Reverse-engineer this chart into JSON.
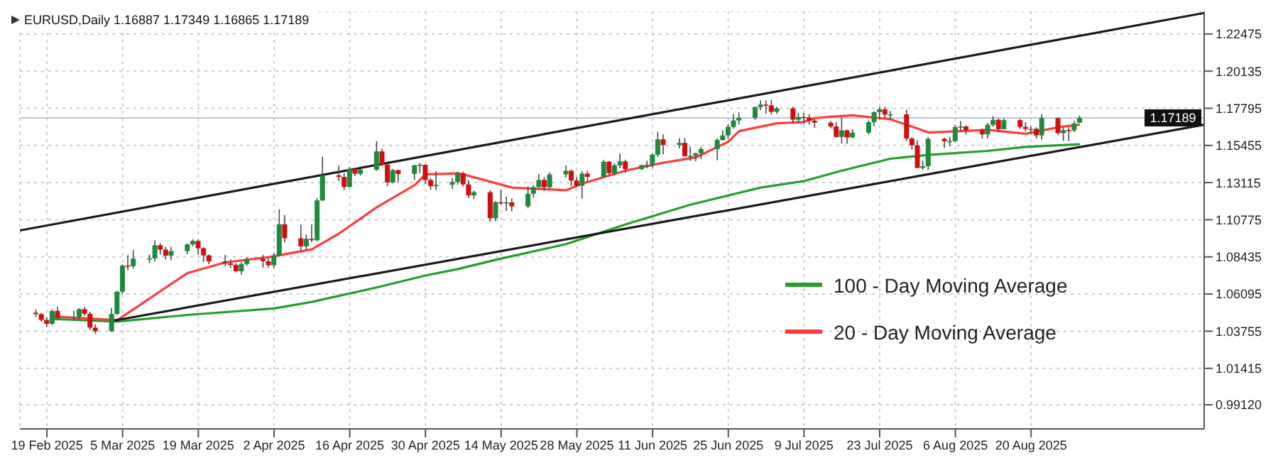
{
  "chart_data": {
    "type": "candlestick",
    "title": "EURUSD,Daily  1.16887 1.17349 1.16865 1.17189",
    "x": [
      "2025-02-17",
      "2025-02-18",
      "2025-02-19",
      "2025-02-20",
      "2025-02-21",
      "2025-02-24",
      "2025-02-25",
      "2025-02-26",
      "2025-02-27",
      "2025-02-28",
      "2025-03-03",
      "2025-03-04",
      "2025-03-05",
      "2025-03-06",
      "2025-03-07",
      "2025-03-10",
      "2025-03-11",
      "2025-03-12",
      "2025-03-13",
      "2025-03-14",
      "2025-03-17",
      "2025-03-18",
      "2025-03-19",
      "2025-03-20",
      "2025-03-21",
      "2025-03-24",
      "2025-03-25",
      "2025-03-26",
      "2025-03-27",
      "2025-03-28",
      "2025-03-31",
      "2025-04-01",
      "2025-04-02",
      "2025-04-03",
      "2025-04-04",
      "2025-04-07",
      "2025-04-08",
      "2025-04-09",
      "2025-04-10",
      "2025-04-11",
      "2025-04-14",
      "2025-04-15",
      "2025-04-16",
      "2025-04-17",
      "2025-04-18",
      "2025-04-21",
      "2025-04-22",
      "2025-04-23",
      "2025-04-24",
      "2025-04-25",
      "2025-04-28",
      "2025-04-29",
      "2025-04-30",
      "2025-05-01",
      "2025-05-02",
      "2025-05-05",
      "2025-05-06",
      "2025-05-07",
      "2025-05-08",
      "2025-05-09",
      "2025-05-12",
      "2025-05-13",
      "2025-05-14",
      "2025-05-15",
      "2025-05-16",
      "2025-05-19",
      "2025-05-20",
      "2025-05-21",
      "2025-05-22",
      "2025-05-23",
      "2025-05-26",
      "2025-05-27",
      "2025-05-28",
      "2025-05-29",
      "2025-05-30",
      "2025-06-02",
      "2025-06-03",
      "2025-06-04",
      "2025-06-05",
      "2025-06-06",
      "2025-06-09",
      "2025-06-10",
      "2025-06-11",
      "2025-06-12",
      "2025-06-13",
      "2025-06-16",
      "2025-06-17",
      "2025-06-18",
      "2025-06-19",
      "2025-06-20",
      "2025-06-23",
      "2025-06-24",
      "2025-06-25",
      "2025-06-26",
      "2025-06-27",
      "2025-06-30",
      "2025-07-01",
      "2025-07-02",
      "2025-07-03",
      "2025-07-04",
      "2025-07-07",
      "2025-07-08",
      "2025-07-09",
      "2025-07-10",
      "2025-07-11",
      "2025-07-14",
      "2025-07-15",
      "2025-07-16",
      "2025-07-17",
      "2025-07-18",
      "2025-07-21",
      "2025-07-22",
      "2025-07-23",
      "2025-07-24",
      "2025-07-25",
      "2025-07-28",
      "2025-07-29",
      "2025-07-30",
      "2025-07-31",
      "2025-08-01",
      "2025-08-04",
      "2025-08-05",
      "2025-08-06",
      "2025-08-07",
      "2025-08-08",
      "2025-08-11",
      "2025-08-12",
      "2025-08-13",
      "2025-08-14",
      "2025-08-15",
      "2025-08-18",
      "2025-08-19",
      "2025-08-20",
      "2025-08-21",
      "2025-08-22",
      "2025-08-25",
      "2025-08-26",
      "2025-08-27",
      "2025-08-28",
      "2025-08-29"
    ],
    "ohlc": [
      [
        1.0492,
        1.0513,
        1.0465,
        1.0483
      ],
      [
        1.0483,
        1.049,
        1.0435,
        1.0446
      ],
      [
        1.0446,
        1.0462,
        1.0401,
        1.0422
      ],
      [
        1.0422,
        1.0512,
        1.0415,
        1.0503
      ],
      [
        1.0503,
        1.0528,
        1.0448,
        1.0459
      ],
      [
        1.0459,
        1.0505,
        1.0448,
        1.0466
      ],
      [
        1.0466,
        1.0521,
        1.0447,
        1.0514
      ],
      [
        1.0514,
        1.0528,
        1.0472,
        1.0485
      ],
      [
        1.0485,
        1.0498,
        1.0382,
        1.0398
      ],
      [
        1.0398,
        1.0418,
        1.036,
        1.0375
      ],
      [
        1.0375,
        1.0522,
        1.037,
        1.0484
      ],
      [
        1.0484,
        1.063,
        1.0478,
        1.0624
      ],
      [
        1.0624,
        1.0797,
        1.061,
        1.0789
      ],
      [
        1.0789,
        1.0854,
        1.076,
        1.0785
      ],
      [
        1.0785,
        1.0888,
        1.077,
        1.0833
      ],
      [
        1.0833,
        1.0858,
        1.0805,
        1.0834
      ],
      [
        1.0834,
        1.0947,
        1.0815,
        1.0917
      ],
      [
        1.0917,
        1.0929,
        1.0858,
        1.0889
      ],
      [
        1.0889,
        1.0906,
        1.0828,
        1.0851
      ],
      [
        1.0851,
        1.0906,
        1.0822,
        1.088
      ],
      [
        1.088,
        1.0928,
        1.086,
        1.0922
      ],
      [
        1.0922,
        1.0955,
        1.091,
        1.0944
      ],
      [
        1.0944,
        1.0953,
        1.086,
        1.0898
      ],
      [
        1.0898,
        1.0905,
        1.0812,
        1.0853
      ],
      [
        1.0853,
        1.0859,
        1.0797,
        1.0815
      ],
      [
        1.0815,
        1.0856,
        1.0785,
        1.0802
      ],
      [
        1.0802,
        1.0827,
        1.0774,
        1.0793
      ],
      [
        1.0793,
        1.0803,
        1.0745,
        1.0753
      ],
      [
        1.0753,
        1.081,
        1.0732,
        1.0799
      ],
      [
        1.0799,
        1.0842,
        1.0787,
        1.083
      ],
      [
        1.083,
        1.0857,
        1.0776,
        1.0816
      ],
      [
        1.0816,
        1.0835,
        1.0777,
        1.0791
      ],
      [
        1.0791,
        1.0868,
        1.0775,
        1.0851
      ],
      [
        1.0851,
        1.1144,
        1.0845,
        1.1049
      ],
      [
        1.1049,
        1.1107,
        1.0935,
        1.0961
      ],
      [
        1.0961,
        1.1047,
        1.088,
        1.091
      ],
      [
        1.091,
        1.0985,
        1.089,
        1.0957
      ],
      [
        1.0957,
        1.1048,
        1.0935,
        1.0949
      ],
      [
        1.0949,
        1.1214,
        1.094,
        1.1199
      ],
      [
        1.1199,
        1.1474,
        1.1195,
        1.1357
      ],
      [
        1.1357,
        1.142,
        1.1321,
        1.1347
      ],
      [
        1.1347,
        1.137,
        1.1264,
        1.1284
      ],
      [
        1.1284,
        1.141,
        1.128,
        1.1398
      ],
      [
        1.1398,
        1.1404,
        1.1355,
        1.1367
      ],
      [
        1.1367,
        1.1396,
        1.1357,
        1.1393
      ],
      [
        1.1393,
        1.1573,
        1.1385,
        1.1508
      ],
      [
        1.1508,
        1.1525,
        1.1415,
        1.1425
      ],
      [
        1.1425,
        1.1437,
        1.129,
        1.1313
      ],
      [
        1.1313,
        1.1397,
        1.1306,
        1.139
      ],
      [
        1.139,
        1.1394,
        1.1316,
        1.1366
      ],
      [
        1.1366,
        1.1425,
        1.1327,
        1.1421
      ],
      [
        1.1421,
        1.1435,
        1.1371,
        1.1424
      ],
      [
        1.1424,
        1.1426,
        1.1302,
        1.1328
      ],
      [
        1.1328,
        1.134,
        1.1266,
        1.1289
      ],
      [
        1.1289,
        1.1384,
        1.1265,
        1.1298
      ],
      [
        1.1298,
        1.134,
        1.1272,
        1.1315
      ],
      [
        1.1315,
        1.1381,
        1.1298,
        1.137
      ],
      [
        1.137,
        1.138,
        1.1287,
        1.13
      ],
      [
        1.13,
        1.1327,
        1.1214,
        1.1231
      ],
      [
        1.1231,
        1.1262,
        1.1209,
        1.1251
      ],
      [
        1.1251,
        1.1263,
        1.1065,
        1.1087
      ],
      [
        1.1087,
        1.1195,
        1.1068,
        1.1188
      ],
      [
        1.1188,
        1.1265,
        1.1172,
        1.1186
      ],
      [
        1.1186,
        1.1223,
        1.1133,
        1.1187
      ],
      [
        1.1187,
        1.1212,
        1.113,
        1.1162
      ],
      [
        1.1162,
        1.1287,
        1.115,
        1.1241
      ],
      [
        1.1241,
        1.1295,
        1.1218,
        1.1283
      ],
      [
        1.1283,
        1.1365,
        1.1279,
        1.1328
      ],
      [
        1.1328,
        1.1345,
        1.1258,
        1.1282
      ],
      [
        1.1282,
        1.1376,
        1.1276,
        1.1363
      ],
      [
        1.1363,
        1.1419,
        1.1343,
        1.1386
      ],
      [
        1.1386,
        1.1395,
        1.129,
        1.1324
      ],
      [
        1.1324,
        1.1346,
        1.1284,
        1.1292
      ],
      [
        1.1292,
        1.1384,
        1.121,
        1.1368
      ],
      [
        1.1368,
        1.1385,
        1.1314,
        1.1348
      ],
      [
        1.1348,
        1.1454,
        1.1345,
        1.1443
      ],
      [
        1.1443,
        1.1447,
        1.1358,
        1.1371
      ],
      [
        1.1371,
        1.1434,
        1.1355,
        1.142
      ],
      [
        1.142,
        1.1495,
        1.1402,
        1.1445
      ],
      [
        1.1445,
        1.1456,
        1.1372,
        1.1397
      ],
      [
        1.1397,
        1.1426,
        1.1391,
        1.1421
      ],
      [
        1.1421,
        1.145,
        1.1401,
        1.1424
      ],
      [
        1.1424,
        1.1497,
        1.1406,
        1.1487
      ],
      [
        1.1487,
        1.1632,
        1.1473,
        1.1584
      ],
      [
        1.1584,
        1.1614,
        1.149,
        1.1548
      ],
      [
        1.1548,
        1.1592,
        1.1528,
        1.1562
      ],
      [
        1.1562,
        1.1592,
        1.1474,
        1.1478
      ],
      [
        1.1478,
        1.1538,
        1.1448,
        1.148
      ],
      [
        1.148,
        1.15,
        1.1446,
        1.1496
      ],
      [
        1.1496,
        1.1537,
        1.1459,
        1.1523
      ],
      [
        1.1523,
        1.159,
        1.1452,
        1.158
      ],
      [
        1.158,
        1.1641,
        1.1575,
        1.1609
      ],
      [
        1.1609,
        1.168,
        1.1588,
        1.1662
      ],
      [
        1.1662,
        1.1744,
        1.1652,
        1.1703
      ],
      [
        1.1703,
        1.1754,
        1.1678,
        1.1719
      ],
      [
        1.1719,
        1.179,
        1.1707,
        1.1787
      ],
      [
        1.1787,
        1.183,
        1.1767,
        1.1803
      ],
      [
        1.1803,
        1.1829,
        1.1745,
        1.1798
      ],
      [
        1.1798,
        1.1831,
        1.174,
        1.1757
      ],
      [
        1.1757,
        1.1789,
        1.1745,
        1.1779
      ],
      [
        1.1779,
        1.179,
        1.1682,
        1.1708
      ],
      [
        1.1708,
        1.175,
        1.1684,
        1.1725
      ],
      [
        1.1725,
        1.1749,
        1.1682,
        1.1721
      ],
      [
        1.1721,
        1.1743,
        1.1677,
        1.1702
      ],
      [
        1.1702,
        1.1713,
        1.1656,
        1.1689
      ],
      [
        1.1689,
        1.17,
        1.1653,
        1.1665
      ],
      [
        1.1665,
        1.1693,
        1.1594,
        1.1599
      ],
      [
        1.1599,
        1.172,
        1.1557,
        1.1641
      ],
      [
        1.1641,
        1.1646,
        1.1556,
        1.1596
      ],
      [
        1.1596,
        1.1648,
        1.1592,
        1.1626
      ],
      [
        1.1626,
        1.1702,
        1.1614,
        1.1692
      ],
      [
        1.1692,
        1.1761,
        1.1666,
        1.1755
      ],
      [
        1.1755,
        1.1788,
        1.1712,
        1.1773
      ],
      [
        1.1773,
        1.1789,
        1.1718,
        1.174
      ],
      [
        1.174,
        1.1763,
        1.1707,
        1.1741
      ],
      [
        1.1741,
        1.177,
        1.1573,
        1.1589
      ],
      [
        1.1589,
        1.1598,
        1.152,
        1.1546
      ],
      [
        1.1546,
        1.1578,
        1.1401,
        1.1404
      ],
      [
        1.1404,
        1.145,
        1.1392,
        1.1415
      ],
      [
        1.1415,
        1.1599,
        1.1391,
        1.1587
      ],
      [
        1.1587,
        1.1595,
        1.153,
        1.1572
      ],
      [
        1.1572,
        1.1599,
        1.154,
        1.1573
      ],
      [
        1.1573,
        1.1674,
        1.1566,
        1.1661
      ],
      [
        1.1661,
        1.1699,
        1.1636,
        1.1665
      ],
      [
        1.1665,
        1.1672,
        1.1615,
        1.1642
      ],
      [
        1.1642,
        1.165,
        1.1588,
        1.1615
      ],
      [
        1.1615,
        1.1688,
        1.1591,
        1.1675
      ],
      [
        1.1675,
        1.173,
        1.1662,
        1.1707
      ],
      [
        1.1707,
        1.1716,
        1.1631,
        1.1648
      ],
      [
        1.1648,
        1.1715,
        1.1646,
        1.1705
      ],
      [
        1.1705,
        1.1712,
        1.165,
        1.1662
      ],
      [
        1.1662,
        1.1692,
        1.1633,
        1.1649
      ],
      [
        1.1649,
        1.1664,
        1.1618,
        1.165
      ],
      [
        1.165,
        1.166,
        1.159,
        1.1609
      ],
      [
        1.1609,
        1.1742,
        1.1583,
        1.1718
      ],
      [
        1.1718,
        1.172,
        1.1612,
        1.1623
      ],
      [
        1.1623,
        1.166,
        1.1574,
        1.1642
      ],
      [
        1.1642,
        1.166,
        1.1574,
        1.164
      ],
      [
        1.164,
        1.17,
        1.163,
        1.1684
      ],
      [
        1.16887,
        1.17349,
        1.16865,
        1.17189
      ]
    ],
    "series": [
      {
        "type": "line",
        "name": "100 - Day Moving Average",
        "color": "#22a02a",
        "x": [
          "2025-02-20",
          "2025-03-04",
          "2025-03-17",
          "2025-04-02",
          "2025-04-09",
          "2025-04-21",
          "2025-04-30",
          "2025-05-06",
          "2025-05-13",
          "2025-05-26",
          "2025-06-06",
          "2025-06-18",
          "2025-07-01",
          "2025-07-09",
          "2025-07-16",
          "2025-07-25",
          "2025-08-01",
          "2025-08-12",
          "2025-08-19",
          "2025-08-29"
        ],
        "values": [
          1.0453,
          1.0436,
          1.0478,
          1.0519,
          1.056,
          1.0651,
          1.0726,
          1.0767,
          1.0825,
          1.0924,
          1.1048,
          1.1172,
          1.128,
          1.1321,
          1.1387,
          1.1462,
          1.1486,
          1.1511,
          1.1536,
          1.1553
        ]
      },
      {
        "type": "line",
        "name": "20 - Day Moving Average",
        "color": "#ff3b3b",
        "x": [
          "2025-02-20",
          "2025-03-04",
          "2025-03-17",
          "2025-03-24",
          "2025-04-01",
          "2025-04-09",
          "2025-04-14",
          "2025-04-21",
          "2025-04-28",
          "2025-04-30",
          "2025-05-06",
          "2025-05-08",
          "2025-05-16",
          "2025-05-26",
          "2025-05-29",
          "2025-06-06",
          "2025-06-13",
          "2025-06-19",
          "2025-06-25",
          "2025-06-27",
          "2025-07-04",
          "2025-07-09",
          "2025-07-11",
          "2025-07-14",
          "2025-07-18",
          "2025-07-25",
          "2025-07-30",
          "2025-08-01",
          "2025-08-12",
          "2025-08-19",
          "2025-08-25",
          "2025-08-29"
        ],
        "values": [
          1.0469,
          1.0445,
          1.0742,
          1.0809,
          1.0842,
          1.0891,
          1.099,
          1.1156,
          1.1296,
          1.1363,
          1.137,
          1.1354,
          1.128,
          1.1263,
          1.1305,
          1.1387,
          1.1437,
          1.147,
          1.1569,
          1.1636,
          1.1685,
          1.1693,
          1.1718,
          1.1727,
          1.1735,
          1.171,
          1.1652,
          1.1627,
          1.1644,
          1.1619,
          1.166,
          1.1677
        ]
      },
      {
        "type": "line",
        "color": "#1a1a1a",
        "x": [
          "2025-02-14",
          "2025-09-21"
        ],
        "values": [
          1.101,
          1.238
        ]
      },
      {
        "type": "line",
        "color": "#1a1a1a",
        "x": [
          "2025-03-03",
          "2025-09-21"
        ],
        "values": [
          1.044,
          1.1676
        ]
      }
    ],
    "xlim": [
      "2025-02-14",
      "2025-09-21"
    ],
    "xticks": [
      {
        "value": "2025-02-19",
        "label": "19 Feb 2025"
      },
      {
        "value": "2025-03-05",
        "label": "5 Mar 2025"
      },
      {
        "value": "2025-03-19",
        "label": "19 Mar 2025"
      },
      {
        "value": "2025-04-02",
        "label": "2 Apr 2025"
      },
      {
        "value": "2025-04-16",
        "label": "16 Apr 2025"
      },
      {
        "value": "2025-04-30",
        "label": "30 Apr 2025"
      },
      {
        "value": "2025-05-14",
        "label": "14 May 2025"
      },
      {
        "value": "2025-05-28",
        "label": "28 May 2025"
      },
      {
        "value": "2025-06-11",
        "label": "11 Jun 2025"
      },
      {
        "value": "2025-06-25",
        "label": "25 Jun 2025"
      },
      {
        "value": "2025-07-09",
        "label": "9 Jul 2025"
      },
      {
        "value": "2025-07-23",
        "label": "23 Jul 2025"
      },
      {
        "value": "2025-08-06",
        "label": "6 Aug 2025"
      },
      {
        "value": "2025-08-20",
        "label": "20 Aug 2025"
      }
    ],
    "ylim": [
      0.976,
      1.239
    ],
    "yticks": [
      {
        "value": 0.9912,
        "label": "0.99120"
      },
      1.01415,
      1.03755,
      1.06095,
      1.08435,
      1.10775,
      1.13115,
      1.15455,
      1.17795,
      1.20135,
      1.22475
    ],
    "ref_lines": [
      {
        "axis": "y",
        "value": 1.17189,
        "label": "1.17189",
        "color": "#b8c8e0"
      }
    ],
    "grid": true,
    "legend": "bottom right"
  }
}
